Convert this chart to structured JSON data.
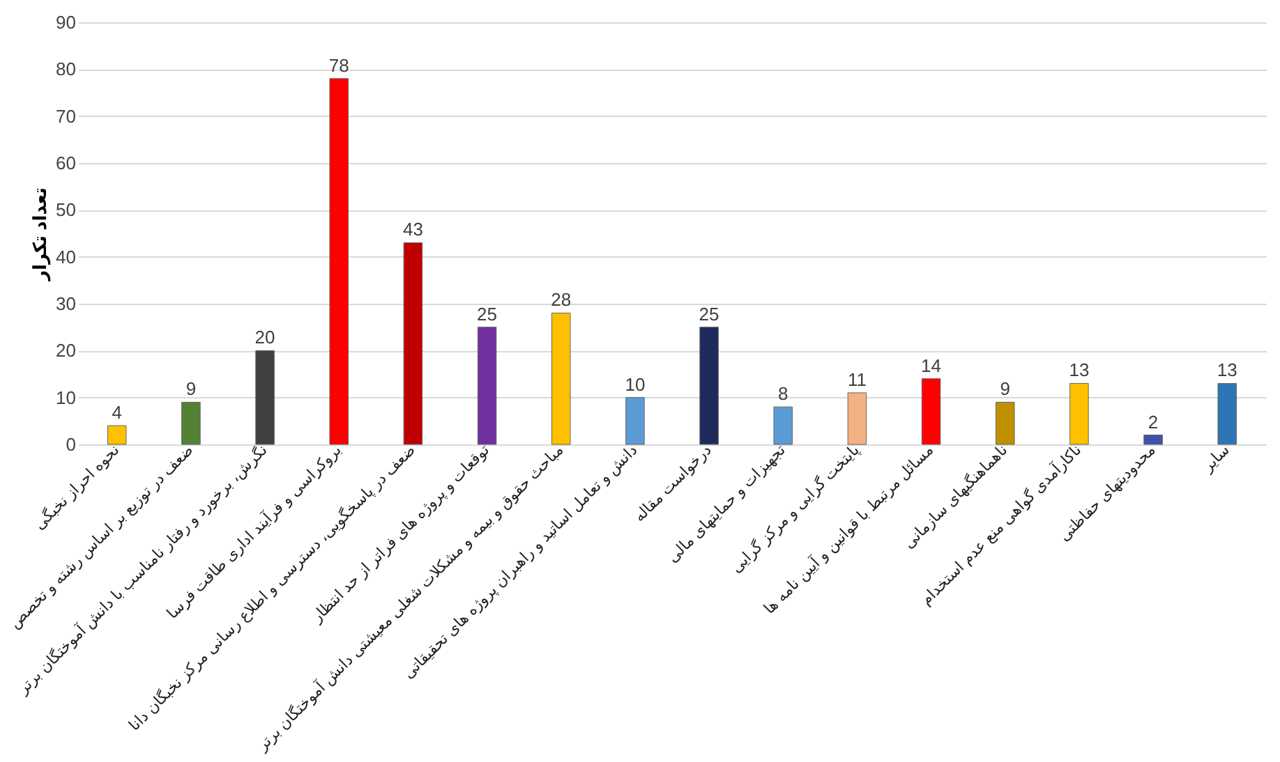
{
  "chart_data": {
    "type": "bar",
    "ylabel": "تعداد تکرار",
    "categories": [
      "نحوه احراز نخبگی",
      "ضعف در توزیع بر اساس رشته و تخصص",
      "نگرش، برخورد و رفتار نامناسب با دانش آموختگان برتر",
      "بروکراسی و فرآیند اداری طاقت فرسا",
      "ضعف در پاسخگویی، دسترسی و اطلاع رسانی مرکز نخبگان دانا",
      "توقعات و پروژه های فراتر از حد انتظار",
      "مباحث حقوق و بیمه و مشکلات شغلی معیشتی دانش آموختگان برتر",
      "دانش و تعامل اساتید و راهبران پروژه های تحقیقاتی",
      "درخواست مقاله",
      "تجهیزات و حمایتهای مالی",
      "پایتخت گرایی و مرکز گرایی",
      "مسائل مرتبط با قوانین و آیین نامه ها",
      "ناهماهنگیهای سازمانی",
      "ناکارآمدی گواهی منع عدم استخدام",
      "محدودیتهای حفاظتی",
      "سایر"
    ],
    "values": [
      4,
      9,
      20,
      78,
      43,
      25,
      28,
      10,
      25,
      8,
      11,
      14,
      9,
      13,
      2,
      13
    ],
    "colors": [
      "#ffc000",
      "#548235",
      "#404040",
      "#ff0000",
      "#c00000",
      "#7030a0",
      "#ffc000",
      "#5b9bd5",
      "#1f2a5c",
      "#5b9bd5",
      "#f4b183",
      "#ff0000",
      "#bf8f00",
      "#ffc000",
      "#3f51a8",
      "#2e75b6"
    ],
    "ylim": [
      0,
      90
    ],
    "yticks": [
      0,
      10,
      20,
      30,
      40,
      50,
      60,
      70,
      80,
      90
    ],
    "grid": "y",
    "data_labels": true
  }
}
